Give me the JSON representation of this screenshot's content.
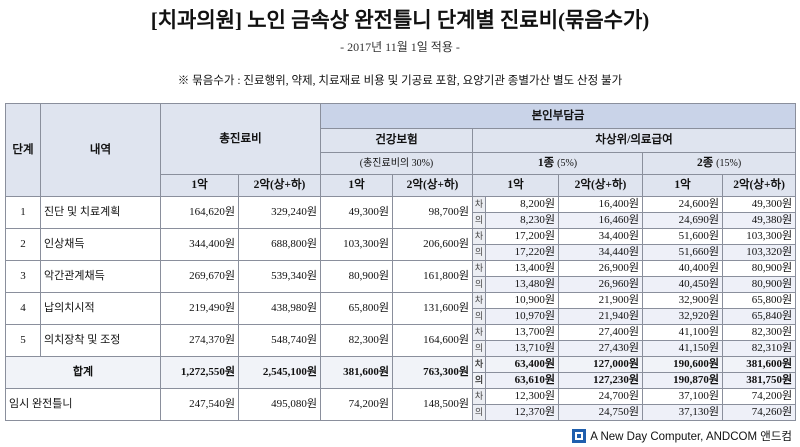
{
  "header": {
    "title": "[치과의원] 노인 금속상 완전틀니 단계별 진료비(묶음수가)",
    "subtitle": "- 2017년 11월 1일 적용 -",
    "note": "※ 묶음수가 : 진료행위, 약제, 치료재료 비용 및 기공료 포함, 요양기관 종별가산 별도 산정 불가"
  },
  "table": {
    "columns": {
      "step": "단계",
      "item": "내역",
      "total": "총진료비",
      "copay": "본인부담금",
      "health": "건강보험",
      "health_note": "(총진료비의 30%)",
      "low_income": "차상위/의료급여",
      "type1": "1종",
      "type1_rate": "(5%)",
      "type2": "2종",
      "type2_rate": "(15%)",
      "jaw1": "1악",
      "jaw2": "2악(상+하)"
    },
    "rows": [
      {
        "step": "1",
        "item": "진단 및 치료계획",
        "total": [
          "164,620원",
          "329,240원"
        ],
        "health": [
          "49,300원",
          "98,700원"
        ],
        "sub": [
          {
            "label": "차",
            "values": [
              "8,200원",
              "16,400원",
              "24,600원",
              "49,300원"
            ]
          },
          {
            "label": "의",
            "values": [
              "8,230원",
              "16,460원",
              "24,690원",
              "49,380원"
            ]
          }
        ]
      },
      {
        "step": "2",
        "item": "인상채득",
        "total": [
          "344,400원",
          "688,800원"
        ],
        "health": [
          "103,300원",
          "206,600원"
        ],
        "sub": [
          {
            "label": "차",
            "values": [
              "17,200원",
              "34,400원",
              "51,600원",
              "103,300원"
            ]
          },
          {
            "label": "의",
            "values": [
              "17,220원",
              "34,440원",
              "51,660원",
              "103,320원"
            ]
          }
        ]
      },
      {
        "step": "3",
        "item": "악간관계채득",
        "total": [
          "269,670원",
          "539,340원"
        ],
        "health": [
          "80,900원",
          "161,800원"
        ],
        "sub": [
          {
            "label": "차",
            "values": [
              "13,400원",
              "26,900원",
              "40,400원",
              "80,900원"
            ]
          },
          {
            "label": "의",
            "values": [
              "13,480원",
              "26,960원",
              "40,450원",
              "80,900원"
            ]
          }
        ]
      },
      {
        "step": "4",
        "item": "납의치시적",
        "total": [
          "219,490원",
          "438,980원"
        ],
        "health": [
          "65,800원",
          "131,600원"
        ],
        "sub": [
          {
            "label": "차",
            "values": [
              "10,900원",
              "21,900원",
              "32,900원",
              "65,800원"
            ]
          },
          {
            "label": "의",
            "values": [
              "10,970원",
              "21,940원",
              "32,920원",
              "65,840원"
            ]
          }
        ]
      },
      {
        "step": "5",
        "item": "의치장착 및 조정",
        "total": [
          "274,370원",
          "548,740원"
        ],
        "health": [
          "82,300원",
          "164,600원"
        ],
        "sub": [
          {
            "label": "차",
            "values": [
              "13,700원",
              "27,400원",
              "41,100원",
              "82,300원"
            ]
          },
          {
            "label": "의",
            "values": [
              "13,710원",
              "27,430원",
              "41,150원",
              "82,310원"
            ]
          }
        ]
      },
      {
        "item": "합계",
        "total": [
          "1,272,550원",
          "2,545,100원"
        ],
        "health": [
          "381,600원",
          "763,300원"
        ],
        "sub": [
          {
            "label": "차",
            "values": [
              "63,400원",
              "127,000원",
              "190,600원",
              "381,600원"
            ]
          },
          {
            "label": "의",
            "values": [
              "63,610원",
              "127,230원",
              "190,870원",
              "381,750원"
            ]
          }
        ]
      },
      {
        "item": "임시 완전틀니",
        "total": [
          "247,540원",
          "495,080원"
        ],
        "health": [
          "74,200원",
          "148,500원"
        ],
        "sub": [
          {
            "label": "차",
            "values": [
              "12,300원",
              "24,700원",
              "37,100원",
              "74,200원"
            ]
          },
          {
            "label": "의",
            "values": [
              "12,370원",
              "24,750원",
              "37,130원",
              "74,260원"
            ]
          }
        ]
      }
    ]
  },
  "footer": "A New Day Computer, ANDCOM 앤드컴"
}
